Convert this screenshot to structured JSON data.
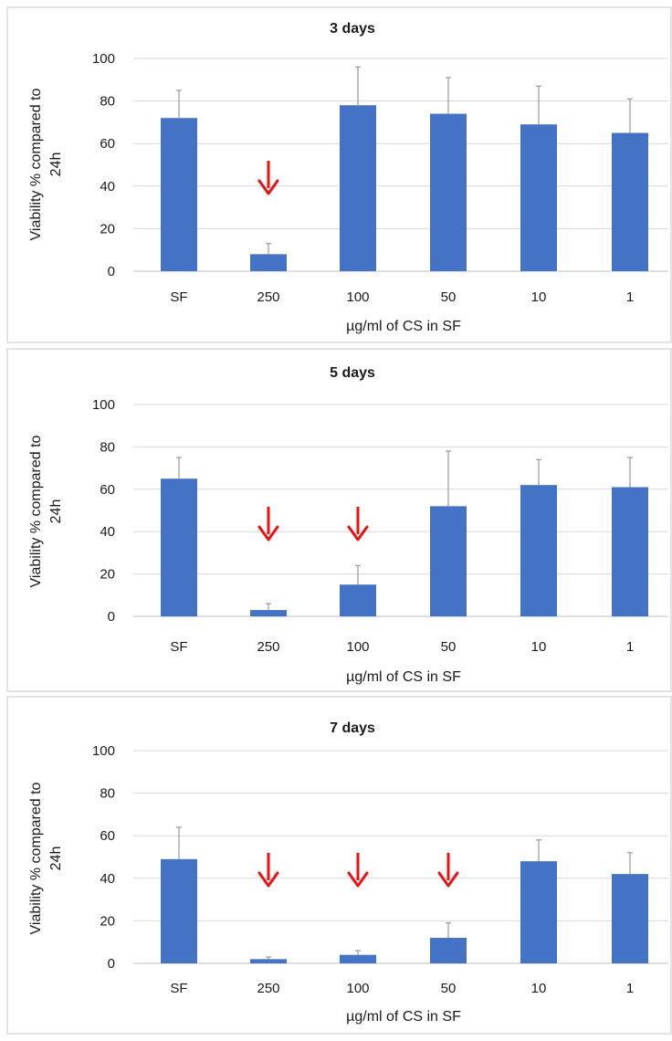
{
  "colors": {
    "bar": "#4472c4",
    "arrow": "#ee1111",
    "grid": "#d9d9d9"
  },
  "chart_data": [
    {
      "type": "bar",
      "title": "3 days",
      "xlabel": "µg/ml of CS in SF",
      "ylabel": "Viability % compared to 24h",
      "ylim": [
        0,
        100
      ],
      "yticks": [
        0,
        20,
        40,
        60,
        80,
        100
      ],
      "grid": true,
      "categories": [
        "SF",
        "250",
        "100",
        "50",
        "10",
        "1"
      ],
      "values": [
        72,
        8,
        78,
        74,
        69,
        65
      ],
      "errors": [
        13,
        5,
        18,
        17,
        18,
        16
      ],
      "arrows": [
        "250"
      ]
    },
    {
      "type": "bar",
      "title": "5 days",
      "xlabel": "µg/ml of CS in SF",
      "ylabel": "Viability % compared to 24h",
      "ylim": [
        0,
        100
      ],
      "yticks": [
        0,
        20,
        40,
        60,
        80,
        100
      ],
      "grid": true,
      "categories": [
        "SF",
        "250",
        "100",
        "50",
        "10",
        "1"
      ],
      "values": [
        65,
        3,
        15,
        52,
        62,
        61
      ],
      "errors": [
        10,
        3,
        9,
        26,
        12,
        14
      ],
      "arrows": [
        "250",
        "100"
      ]
    },
    {
      "type": "bar",
      "title": "7 days",
      "xlabel": "µg/ml of CS in SF",
      "ylabel": "Viability % compared to 24h",
      "ylim": [
        0,
        100
      ],
      "yticks": [
        0,
        20,
        40,
        60,
        80,
        100
      ],
      "grid": true,
      "categories": [
        "SF",
        "250",
        "100",
        "50",
        "10",
        "1"
      ],
      "values": [
        49,
        2,
        4,
        12,
        48,
        42
      ],
      "errors": [
        15,
        1,
        2,
        7,
        10,
        10
      ],
      "arrows": [
        "250",
        "100",
        "50"
      ]
    }
  ]
}
